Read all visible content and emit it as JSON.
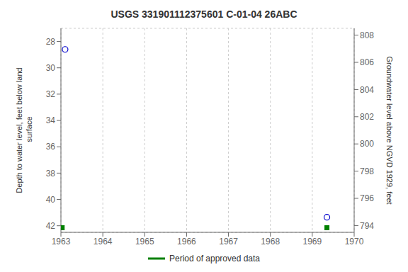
{
  "chart_data": {
    "type": "scatter",
    "title": "USGS 331901112375601 C-01-04 26ABC",
    "y_label": "Depth to water level, feet below land\n surface",
    "y2_label": "Groundwater level above NGVD 1929, feet",
    "xlim": [
      1963.0,
      1970.0
    ],
    "xticks": [
      1963,
      1964,
      1965,
      1966,
      1967,
      1968,
      1969,
      1970
    ],
    "ylim": [
      42.5,
      27.0
    ],
    "yticks": [
      28,
      30,
      32,
      34,
      36,
      38,
      40,
      42
    ],
    "y2lim": [
      793.5,
      808.5
    ],
    "y2ticks": [
      808,
      806,
      804,
      802,
      800,
      798,
      796,
      794
    ],
    "grid": true,
    "legend": "bottom",
    "series": [
      {
        "color": "#0000cc",
        "marker": "circle",
        "x": [
          1963.1,
          1969.35
        ],
        "values": [
          28.6,
          41.35
        ]
      },
      {
        "name": "Period of approved data",
        "color": "#008000",
        "marker": "square",
        "x": [
          1963.03,
          1969.35
        ],
        "values": [
          42.15,
          42.15
        ]
      }
    ]
  }
}
